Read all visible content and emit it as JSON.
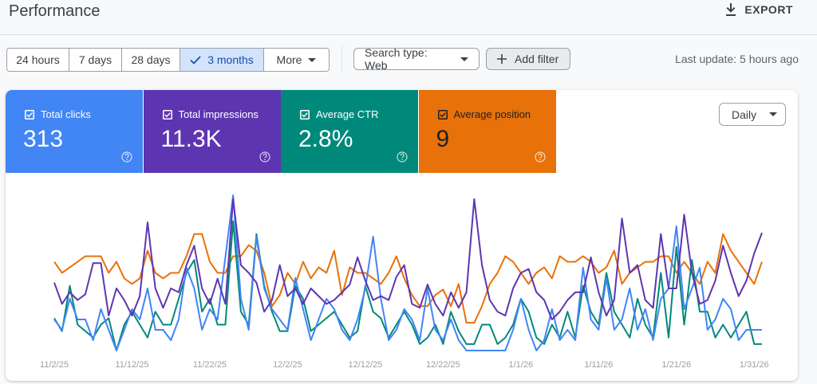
{
  "header": {
    "title": "Performance",
    "export": "EXPORT"
  },
  "filters": {
    "date_ranges": [
      {
        "label": "24 hours",
        "selected": false
      },
      {
        "label": "7 days",
        "selected": false
      },
      {
        "label": "28 days",
        "selected": false
      },
      {
        "label": "3 months",
        "selected": true
      }
    ],
    "more": "More",
    "search_type": "Search type: Web",
    "add_filter": "Add filter",
    "last_update": "Last update: 5 hours ago"
  },
  "chart_data": {
    "type": "line",
    "granularity": "Daily",
    "categories": [
      "11/2/25",
      null,
      null,
      null,
      null,
      null,
      null,
      null,
      null,
      null,
      "11/12/25",
      null,
      null,
      null,
      null,
      null,
      null,
      null,
      null,
      null,
      "11/22/25",
      null,
      null,
      null,
      null,
      null,
      null,
      null,
      null,
      null,
      "12/2/25",
      null,
      null,
      null,
      null,
      null,
      null,
      null,
      null,
      null,
      "12/12/25",
      null,
      null,
      null,
      null,
      null,
      null,
      null,
      null,
      null,
      "12/22/25",
      null,
      null,
      null,
      null,
      null,
      null,
      null,
      null,
      null,
      "1/1/26",
      null,
      null,
      null,
      null,
      null,
      null,
      null,
      null,
      null,
      "1/11/26",
      null,
      null,
      null,
      null,
      null,
      null,
      null,
      null,
      null,
      "1/21/26",
      null,
      null,
      null,
      null,
      null,
      null,
      null,
      null,
      null,
      "1/31/26",
      null
    ],
    "series": [
      {
        "name": "Total clicks",
        "total": "313",
        "color": "#4285f4",
        "line_color": "#4285f4",
        "ylim": [
          0,
          15
        ],
        "values": [
          3,
          2,
          5,
          3,
          3,
          1,
          4,
          2,
          0,
          2,
          4,
          3,
          6,
          2,
          2,
          1,
          3,
          8,
          6,
          2,
          4,
          3,
          9,
          15,
          5,
          2,
          11,
          6,
          4,
          3,
          2,
          7,
          4,
          1,
          3,
          5,
          4,
          2,
          1,
          3,
          6,
          11,
          5,
          1,
          2,
          4,
          3,
          1,
          6,
          2,
          1,
          3,
          1,
          0,
          0,
          0,
          0,
          0,
          0,
          2,
          5,
          2,
          0,
          1,
          4,
          1,
          2,
          1,
          8,
          3,
          2,
          7,
          2,
          3,
          6,
          2,
          4,
          1,
          5,
          6,
          12,
          4,
          6,
          8,
          2,
          3,
          5,
          4,
          1,
          2,
          2,
          2
        ]
      },
      {
        "name": "Total impressions",
        "total": "11.3K",
        "color": "#5e35b1",
        "line_color": "#5e35b1",
        "ylim": [
          0,
          400
        ],
        "values": [
          175,
          120,
          150,
          130,
          145,
          225,
          225,
          90,
          160,
          130,
          90,
          140,
          330,
          160,
          110,
          160,
          150,
          220,
          270,
          160,
          120,
          185,
          120,
          390,
          220,
          200,
          175,
          100,
          130,
          220,
          140,
          160,
          120,
          160,
          140,
          120,
          130,
          150,
          170,
          240,
          180,
          130,
          140,
          130,
          190,
          220,
          120,
          110,
          170,
          120,
          90,
          150,
          110,
          150,
          390,
          220,
          130,
          100,
          90,
          160,
          200,
          210,
          150,
          130,
          80,
          100,
          130,
          150,
          150,
          240,
          150,
          90,
          130,
          340,
          200,
          220,
          130,
          110,
          300,
          160,
          160,
          350,
          200,
          120,
          130,
          180,
          270,
          200,
          140,
          180,
          250,
          303
        ]
      },
      {
        "name": "Average CTR",
        "total": "2.8%",
        "color": "#00897b",
        "line_color": "#00897b",
        "ylim": [
          0,
          12
        ],
        "values": [
          2.5,
          1.5,
          5,
          2,
          1.5,
          1,
          2,
          2.5,
          0,
          2,
          3,
          2,
          1,
          3,
          2,
          2,
          4,
          6,
          7,
          3,
          4,
          2,
          2,
          10,
          3,
          2,
          9,
          5,
          3,
          1.5,
          1.5,
          5,
          4,
          1.5,
          2,
          2.5,
          3,
          2,
          1,
          1.5,
          5,
          3,
          2.5,
          1,
          2,
          3,
          2,
          0.5,
          1,
          2,
          0.5,
          3,
          1.5,
          0.5,
          0.5,
          2,
          2,
          0.5,
          1,
          2,
          4,
          3,
          1,
          0.5,
          2,
          1,
          3,
          1,
          5,
          3,
          2,
          6,
          3,
          2,
          1,
          4,
          2,
          1,
          6,
          1,
          8,
          2,
          7,
          3,
          3,
          1,
          2,
          1,
          2,
          3,
          0.5,
          0.5
        ]
      },
      {
        "name": "Average position",
        "total": "9",
        "color": "#e8710a",
        "line_color": "#e8710a",
        "ylim": [
          18,
          4
        ],
        "text_color": "#202124",
        "values": [
          10,
          11,
          10.5,
          10,
          9.5,
          9.5,
          9.5,
          11,
          10,
          11.5,
          12,
          11.5,
          9,
          11,
          11.5,
          11,
          11,
          9.5,
          7.5,
          7.5,
          10,
          11,
          11,
          9.5,
          9.5,
          8.5,
          9,
          11,
          14,
          13,
          11,
          12,
          10,
          11.5,
          10.5,
          11,
          9,
          13,
          10.5,
          11,
          11,
          11.5,
          12,
          11,
          9.5,
          11.5,
          13,
          14,
          14,
          13,
          12.5,
          14,
          12,
          15.5,
          15.5,
          14,
          12,
          11,
          9.5,
          10,
          11,
          12,
          11,
          10.5,
          11.5,
          9.5,
          10,
          10,
          9.5,
          10,
          11,
          10.5,
          9,
          12,
          11,
          10.5,
          10,
          10,
          9.5,
          9.5,
          11,
          10,
          11,
          12,
          10,
          11,
          7.5,
          9,
          10,
          11,
          12,
          10
        ]
      }
    ],
    "draw_order": [
      3,
      2,
      0,
      1
    ]
  }
}
